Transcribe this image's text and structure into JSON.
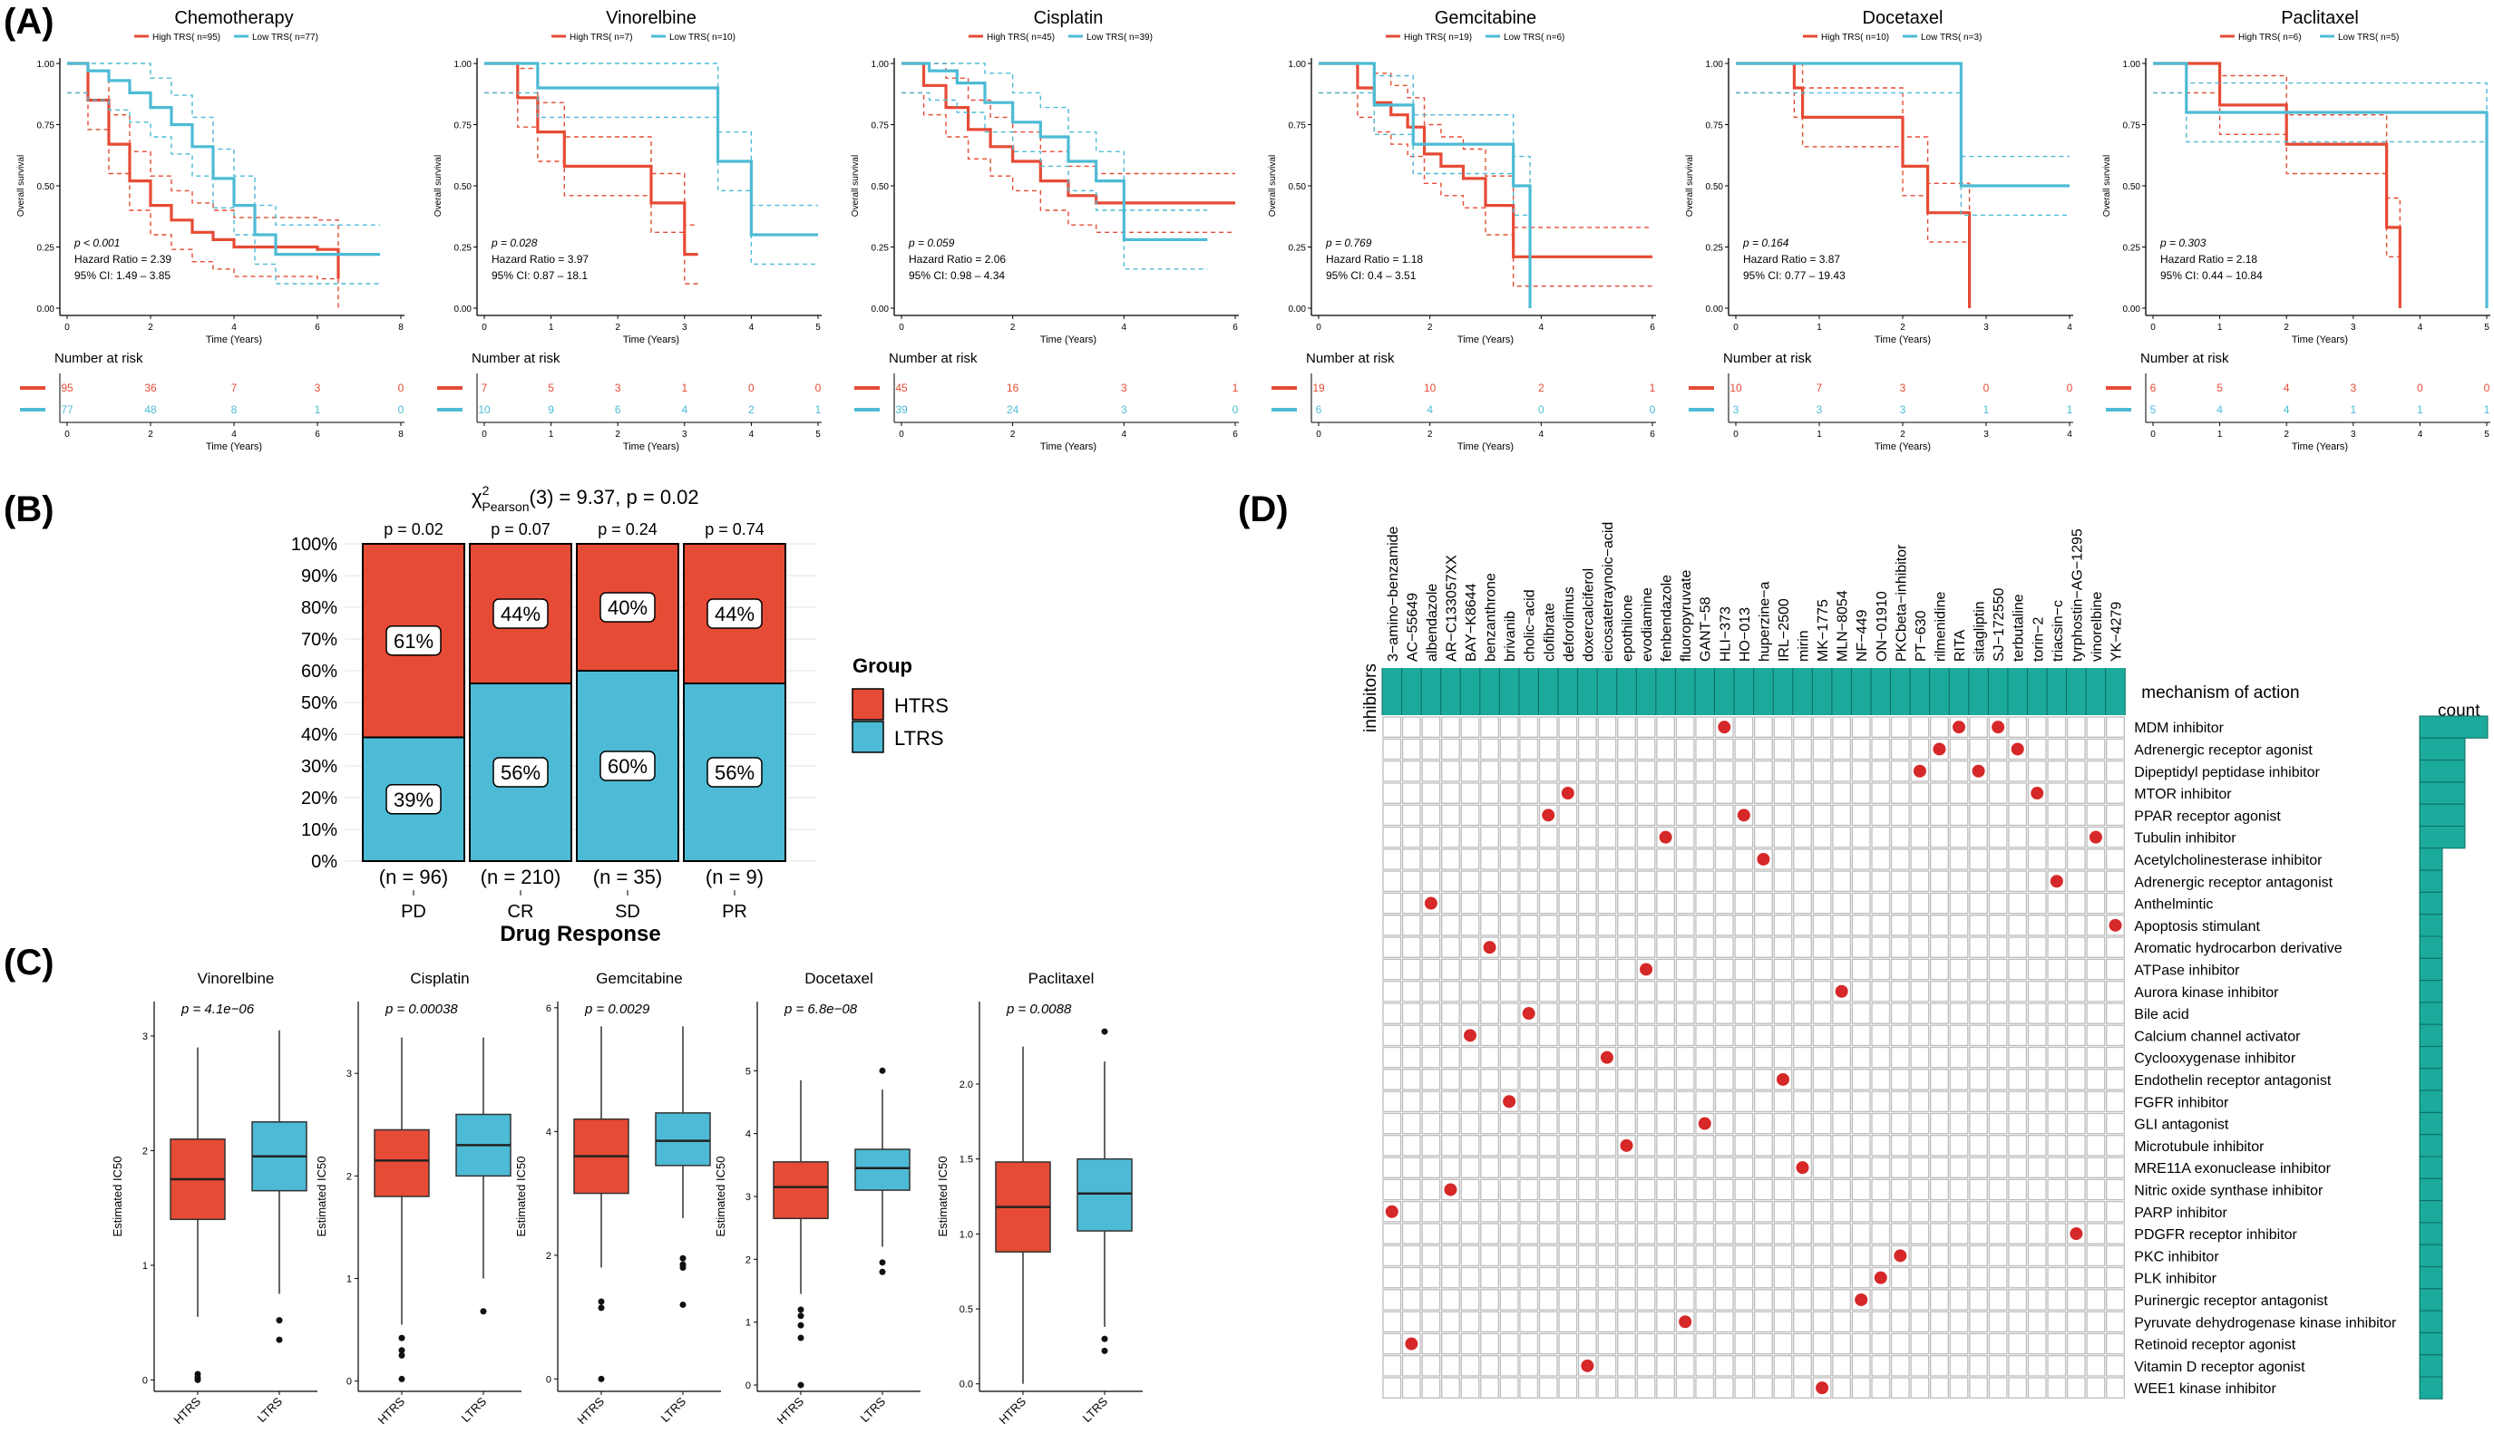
{
  "panels": {
    "A": "(A)",
    "B": "(B)",
    "C": "(C)",
    "D": "(D)"
  },
  "colors": {
    "htrs": "#E64B35",
    "ltrs": "#4DBBD5",
    "teal": "#1BAA9B",
    "dot": "#D62828"
  },
  "km_common": {
    "ylabel": "Overall survival",
    "xlabel": "Time (Years)",
    "risk_title": "Number at risk",
    "risk_xlabel": "Time (Years)",
    "yticks": [
      "0.00",
      "0.25",
      "0.50",
      "0.75",
      "1.00"
    ]
  },
  "chart_data": [
    {
      "type": "line",
      "title": "Chemotherapy",
      "legend": [
        "High TRS( n=95)",
        "Low TRS( n=77)"
      ],
      "p_text": "p < 0.001",
      "hr_text": "Hazard Ratio = 2.39",
      "ci_text": "95% CI: 1.49 – 3.85",
      "xlim": [
        0,
        8
      ],
      "xticks": [
        0,
        2,
        4,
        6,
        8
      ],
      "series": [
        {
          "name": "High TRS",
          "x": [
            0,
            0.5,
            1,
            1.5,
            2,
            2.5,
            3,
            3.5,
            4,
            5,
            6,
            6.5
          ],
          "y": [
            1,
            0.85,
            0.67,
            0.52,
            0.42,
            0.36,
            0.31,
            0.28,
            0.25,
            0.25,
            0.24,
            0.12
          ]
        },
        {
          "name": "Low TRS",
          "x": [
            0,
            0.5,
            1,
            1.5,
            2,
            2.5,
            3,
            3.5,
            4,
            4.5,
            5,
            7.5
          ],
          "y": [
            1,
            0.97,
            0.93,
            0.88,
            0.82,
            0.75,
            0.66,
            0.53,
            0.42,
            0.3,
            0.22,
            0.22
          ]
        }
      ],
      "risk": {
        "times": [
          0,
          2,
          4,
          6,
          8
        ],
        "high": [
          "95",
          "36",
          "7",
          "3",
          "0"
        ],
        "low": [
          "77",
          "48",
          "8",
          "1",
          "0"
        ]
      }
    },
    {
      "type": "line",
      "title": "Vinorelbine",
      "legend": [
        "High TRS( n=7)",
        "Low TRS( n=10)"
      ],
      "p_text": "p = 0.028",
      "hr_text": "Hazard Ratio = 3.97",
      "ci_text": "95% CI: 0.87 – 18.1",
      "xlim": [
        0,
        5
      ],
      "xticks": [
        0,
        1,
        2,
        3,
        4,
        5
      ],
      "series": [
        {
          "name": "High TRS",
          "x": [
            0,
            0.5,
            0.8,
            1.2,
            2.5,
            3,
            3.2
          ],
          "y": [
            1,
            0.86,
            0.72,
            0.58,
            0.43,
            0.22,
            0.22
          ]
        },
        {
          "name": "Low TRS",
          "x": [
            0,
            0.8,
            3,
            3.5,
            4,
            5
          ],
          "y": [
            1,
            0.9,
            0.9,
            0.6,
            0.3,
            0.3
          ]
        }
      ],
      "risk": {
        "times": [
          0,
          1,
          2,
          3,
          4,
          5
        ],
        "high": [
          "7",
          "5",
          "3",
          "1",
          "0",
          "0"
        ],
        "low": [
          "10",
          "9",
          "6",
          "4",
          "2",
          "1"
        ]
      }
    },
    {
      "type": "line",
      "title": "Cisplatin",
      "legend": [
        "High TRS( n=45)",
        "Low TRS( n=39)"
      ],
      "p_text": "p = 0.059",
      "hr_text": "Hazard Ratio = 2.06",
      "ci_text": "95% CI: 0.98 – 4.34",
      "xlim": [
        0,
        6
      ],
      "xticks": [
        0,
        2,
        4,
        6
      ],
      "series": [
        {
          "name": "High TRS",
          "x": [
            0,
            0.4,
            0.8,
            1.2,
            1.6,
            2,
            2.5,
            3,
            3.5,
            4,
            6
          ],
          "y": [
            1,
            0.91,
            0.82,
            0.73,
            0.66,
            0.6,
            0.52,
            0.46,
            0.43,
            0.43,
            0.43
          ]
        },
        {
          "name": "Low TRS",
          "x": [
            0,
            0.5,
            1,
            1.5,
            2,
            2.5,
            3,
            3.5,
            4,
            5.5
          ],
          "y": [
            1,
            0.97,
            0.92,
            0.84,
            0.76,
            0.7,
            0.6,
            0.52,
            0.28,
            0.28
          ]
        }
      ],
      "risk": {
        "times": [
          0,
          2,
          4,
          6
        ],
        "high": [
          "45",
          "16",
          "3",
          "1"
        ],
        "low": [
          "39",
          "24",
          "3",
          "0"
        ]
      }
    },
    {
      "type": "line",
      "title": "Gemcitabine",
      "legend": [
        "High TRS( n=19)",
        "Low TRS( n=6)"
      ],
      "p_text": "p = 0.769",
      "hr_text": "Hazard Ratio = 1.18",
      "ci_text": "95% CI: 0.4 – 3.51",
      "xlim": [
        0,
        6
      ],
      "xticks": [
        0,
        2,
        4,
        6
      ],
      "series": [
        {
          "name": "High TRS",
          "x": [
            0,
            0.7,
            1,
            1.3,
            1.6,
            1.9,
            2.2,
            2.6,
            3,
            3.5,
            3.8,
            6
          ],
          "y": [
            1,
            0.9,
            0.84,
            0.79,
            0.74,
            0.63,
            0.58,
            0.53,
            0.42,
            0.21,
            0.21,
            0.21
          ]
        },
        {
          "name": "Low TRS",
          "x": [
            0,
            1,
            1.7,
            2.2,
            3,
            3.5,
            3.8,
            3.8
          ],
          "y": [
            1,
            0.83,
            0.67,
            0.67,
            0.67,
            0.5,
            0.5,
            0
          ]
        }
      ],
      "risk": {
        "times": [
          0,
          2,
          4,
          6
        ],
        "high": [
          "19",
          "10",
          "2",
          "1"
        ],
        "low": [
          "6",
          "4",
          "0",
          "0"
        ]
      }
    },
    {
      "type": "line",
      "title": "Docetaxel",
      "legend": [
        "High TRS( n=10)",
        "Low TRS( n=3)"
      ],
      "p_text": "p = 0.164",
      "hr_text": "Hazard Ratio = 3.87",
      "ci_text": "95% CI: 0.77 – 19.43",
      "xlim": [
        0,
        4
      ],
      "xticks": [
        0,
        1,
        2,
        3,
        4
      ],
      "series": [
        {
          "name": "High TRS",
          "x": [
            0,
            0.7,
            0.8,
            2,
            2.3,
            2.8,
            2.8
          ],
          "y": [
            1,
            0.9,
            0.78,
            0.58,
            0.39,
            0.39,
            0
          ]
        },
        {
          "name": "Low TRS",
          "x": [
            0,
            2.7,
            4
          ],
          "y": [
            1,
            0.5,
            0.5
          ]
        }
      ],
      "risk": {
        "times": [
          0,
          1,
          2,
          3,
          4
        ],
        "high": [
          "10",
          "7",
          "3",
          "0",
          "0"
        ],
        "low": [
          "3",
          "3",
          "3",
          "1",
          "1"
        ]
      }
    },
    {
      "type": "line",
      "title": "Paclitaxel",
      "legend": [
        "High TRS( n=6)",
        "Low TRS( n=5)"
      ],
      "p_text": "p = 0.303",
      "hr_text": "Hazard Ratio = 2.18",
      "ci_text": "95% CI: 0.44 – 10.84",
      "xlim": [
        0,
        5
      ],
      "xticks": [
        0,
        1,
        2,
        3,
        4,
        5
      ],
      "series": [
        {
          "name": "High TRS",
          "x": [
            0,
            1,
            2,
            3.5,
            3.7,
            3.7
          ],
          "y": [
            1,
            0.83,
            0.67,
            0.33,
            0.33,
            0
          ]
        },
        {
          "name": "Low TRS",
          "x": [
            0,
            0.5,
            5,
            5
          ],
          "y": [
            1,
            0.8,
            0.8,
            0
          ]
        }
      ],
      "risk": {
        "times": [
          0,
          1,
          2,
          3,
          4,
          5
        ],
        "high": [
          "6",
          "5",
          "4",
          "3",
          "0",
          "0"
        ],
        "low": [
          "5",
          "4",
          "4",
          "1",
          "1",
          "1"
        ]
      }
    },
    {
      "type": "bar",
      "title": "χ²Pearson(3) = 9.37, p = 0.02",
      "stat_main": "χ",
      "stat_sup": "2",
      "stat_sub": "Pearson",
      "stat_rest": "(3) = 9.37, p = 0.02",
      "xlabel": "Drug Response",
      "ylabel": "",
      "yticks": [
        "0%",
        "10%",
        "20%",
        "30%",
        "40%",
        "50%",
        "60%",
        "70%",
        "80%",
        "90%",
        "100%"
      ],
      "categories": [
        "PD",
        "CR",
        "SD",
        "PR"
      ],
      "n_labels": [
        "(n = 96)",
        "(n = 210)",
        "(n = 35)",
        "(n = 9)"
      ],
      "p_labels": [
        "p = 0.02",
        "p = 0.07",
        "p = 0.24",
        "p = 0.74"
      ],
      "series": [
        {
          "name": "HTRS",
          "values": [
            61,
            44,
            40,
            44
          ],
          "labels": [
            "61%",
            "44%",
            "40%",
            "44%"
          ]
        },
        {
          "name": "LTRS",
          "values": [
            39,
            56,
            60,
            56
          ],
          "labels": [
            "39%",
            "56%",
            "60%",
            "56%"
          ]
        }
      ],
      "legend_title": "Group",
      "legend": [
        "HTRS",
        "LTRS"
      ]
    },
    {
      "type": "box",
      "title": "Vinorelbine",
      "ylabel": "Estimated IC50",
      "p_text": "p = 4.1e−06",
      "categories": [
        "HTRS",
        "LTRS"
      ],
      "ylim": [
        -0.1,
        3.3
      ],
      "yticks": [
        0,
        1,
        2,
        3
      ],
      "boxes": [
        {
          "min": 0.55,
          "q1": 1.4,
          "median": 1.75,
          "q3": 2.1,
          "max": 2.9,
          "outliers": [
            0.05,
            0.02,
            0.0
          ]
        },
        {
          "min": 0.75,
          "q1": 1.65,
          "median": 1.95,
          "q3": 2.25,
          "max": 3.05,
          "outliers": [
            0.52,
            0.35
          ]
        }
      ]
    },
    {
      "type": "box",
      "title": "Cisplatin",
      "ylabel": "Estimated IC50",
      "p_text": "p = 0.00038",
      "categories": [
        "HTRS",
        "LTRS"
      ],
      "ylim": [
        -0.1,
        3.7
      ],
      "yticks": [
        0,
        1,
        2,
        3
      ],
      "boxes": [
        {
          "min": 0.55,
          "q1": 1.8,
          "median": 2.15,
          "q3": 2.45,
          "max": 3.35,
          "outliers": [
            0.42,
            0.3,
            0.25,
            0.02
          ]
        },
        {
          "min": 1.0,
          "q1": 2.0,
          "median": 2.3,
          "q3": 2.6,
          "max": 3.35,
          "outliers": [
            0.68
          ]
        }
      ]
    },
    {
      "type": "box",
      "title": "Gemcitabine",
      "ylabel": "Estimated IC50",
      "p_text": "p = 0.0029",
      "categories": [
        "HTRS",
        "LTRS"
      ],
      "ylim": [
        -0.2,
        6.1
      ],
      "yticks": [
        0,
        2,
        4,
        6
      ],
      "boxes": [
        {
          "min": 1.8,
          "q1": 3.0,
          "median": 3.6,
          "q3": 4.2,
          "max": 5.7,
          "outliers": [
            1.25,
            1.15,
            0.0
          ]
        },
        {
          "min": 2.6,
          "q1": 3.45,
          "median": 3.85,
          "q3": 4.3,
          "max": 5.7,
          "outliers": [
            1.95,
            1.85,
            1.8,
            1.2
          ]
        }
      ]
    },
    {
      "type": "box",
      "title": "Docetaxel",
      "ylabel": "Estimated IC50",
      "p_text": "p = 6.8e−08",
      "categories": [
        "HTRS",
        "LTRS"
      ],
      "ylim": [
        -0.1,
        6.1
      ],
      "yticks": [
        0,
        1,
        2,
        3,
        4,
        5
      ],
      "boxes": [
        {
          "min": 1.45,
          "q1": 2.65,
          "median": 3.15,
          "q3": 3.55,
          "max": 4.85,
          "outliers": [
            1.2,
            1.1,
            0.95,
            0.75,
            0.0
          ]
        },
        {
          "min": 2.2,
          "q1": 3.1,
          "median": 3.45,
          "q3": 3.75,
          "max": 4.7,
          "outliers": [
            5.0,
            1.95,
            1.8
          ]
        }
      ]
    },
    {
      "type": "box",
      "title": "Paclitaxel",
      "ylabel": "Estimated IC50",
      "p_text": "p = 0.0088",
      "categories": [
        "HTRS",
        "LTRS"
      ],
      "ylim": [
        -0.05,
        2.55
      ],
      "yticks": [
        0.0,
        0.5,
        1.0,
        1.5,
        2.0
      ],
      "boxes": [
        {
          "min": 0.0,
          "q1": 0.88,
          "median": 1.18,
          "q3": 1.48,
          "max": 2.25,
          "outliers": []
        },
        {
          "min": 0.38,
          "q1": 1.02,
          "median": 1.27,
          "q3": 1.5,
          "max": 2.15,
          "outliers": [
            2.35,
            0.3,
            0.22
          ]
        }
      ]
    },
    {
      "type": "heatmap",
      "title": "mechanism of action",
      "row_axis_label": "inhibitors",
      "count_label": "count",
      "inhibitors": [
        "3−amino−benzamide",
        "AC−55649",
        "albendazole",
        "AR−C133057XX",
        "BAY−K8644",
        "benzanthrone",
        "brivanib",
        "cholic−acid",
        "clofibrate",
        "deforolimus",
        "doxercalciferol",
        "eicosatetraynoic−acid",
        "epothilone",
        "evodiamine",
        "fenbendazole",
        "fluoropyruvate",
        "GANT−58",
        "HLI−373",
        "HO−013",
        "huperzine−a",
        "IRL−2500",
        "mirin",
        "MK−1775",
        "MLN−8054",
        "NF−449",
        "ON−01910",
        "PKCbeta−inhibitor",
        "PT−630",
        "rilmenidine",
        "RITA",
        "sitagliptin",
        "SJ−172550",
        "terbutaline",
        "torin−2",
        "triacsin−c",
        "tyrphostin−AG−1295",
        "vinorelbine",
        "YK−4279"
      ],
      "mechanisms": [
        "MDM inhibitor",
        "Adrenergic receptor agonist",
        "Dipeptidyl peptidase inhibitor",
        "MTOR inhibitor",
        "PPAR receptor agonist",
        "Tubulin inhibitor",
        "Acetylcholinesterase inhibitor",
        "Adrenergic receptor antagonist",
        "Anthelmintic",
        "Apoptosis stimulant",
        "Aromatic hydrocarbon derivative",
        "ATPase inhibitor",
        "Aurora kinase inhibitor",
        "Bile acid",
        "Calcium channel activator",
        "Cyclooxygenase inhibitor",
        "Endothelin receptor antagonist",
        "FGFR inhibitor",
        "GLI antagonist",
        "Microtubule inhibitor",
        "MRE11A exonuclease inhibitor",
        "Nitric oxide synthase inhibitor",
        "PARP inhibitor",
        "PDGFR receptor inhibitor",
        "PKC inhibitor",
        "PLK inhibitor",
        "Purinergic receptor antagonist",
        "Pyruvate dehydrogenase kinase inhibitor",
        "Retinoid receptor agonist",
        "Vitamin D receptor agonist",
        "WEE1 kinase inhibitor"
      ],
      "dots": [
        [
          0,
          17
        ],
        [
          0,
          29
        ],
        [
          0,
          31
        ],
        [
          1,
          28
        ],
        [
          1,
          32
        ],
        [
          2,
          27
        ],
        [
          2,
          30
        ],
        [
          3,
          9
        ],
        [
          3,
          33
        ],
        [
          4,
          8
        ],
        [
          4,
          18
        ],
        [
          5,
          14
        ],
        [
          5,
          36
        ],
        [
          6,
          19
        ],
        [
          7,
          34
        ],
        [
          8,
          2
        ],
        [
          9,
          37
        ],
        [
          10,
          5
        ],
        [
          11,
          13
        ],
        [
          12,
          23
        ],
        [
          13,
          7
        ],
        [
          14,
          4
        ],
        [
          15,
          11
        ],
        [
          16,
          20
        ],
        [
          17,
          6
        ],
        [
          18,
          16
        ],
        [
          19,
          12
        ],
        [
          20,
          21
        ],
        [
          21,
          3
        ],
        [
          22,
          0
        ],
        [
          23,
          35
        ],
        [
          24,
          26
        ],
        [
          25,
          25
        ],
        [
          26,
          24
        ],
        [
          27,
          15
        ],
        [
          28,
          1
        ],
        [
          29,
          10
        ],
        [
          30,
          22
        ]
      ],
      "counts": [
        3,
        2,
        2,
        2,
        2,
        2,
        1,
        1,
        1,
        1,
        1,
        1,
        1,
        1,
        1,
        1,
        1,
        1,
        1,
        1,
        1,
        1,
        1,
        1,
        1,
        1,
        1,
        1,
        1,
        1,
        1
      ]
    }
  ]
}
